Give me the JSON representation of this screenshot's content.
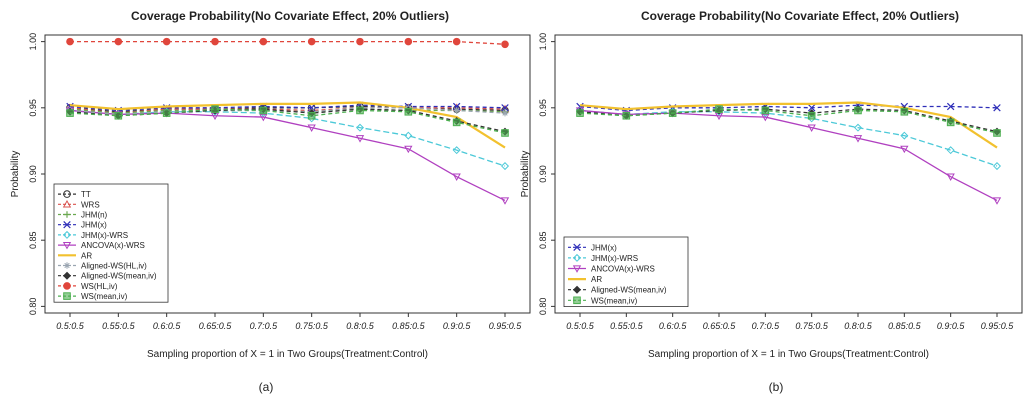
{
  "series_styles": {
    "TT": {
      "color": "#333333",
      "marker": "circle",
      "dash": "4,3"
    },
    "WRS": {
      "color": "#d9534f",
      "marker": "triangle-up",
      "dash": "4,3"
    },
    "JHM(n)": {
      "color": "#6aa84f",
      "marker": "plus",
      "dash": "4,3"
    },
    "JHM(x)": {
      "color": "#2d2db8",
      "marker": "x",
      "dash": "4,3"
    },
    "JHM(x)-WRS": {
      "color": "#4cc9d8",
      "marker": "diamond",
      "dash": "6,3"
    },
    "ANCOVA(x)-WRS": {
      "color": "#b040c0",
      "marker": "triangle-down",
      "dash": "0"
    },
    "AR": {
      "color": "#f2c12e",
      "marker": "none",
      "dash": "0"
    },
    "Aligned-WS(HL,iv)": {
      "color": "#9aa5b1",
      "marker": "star",
      "dash": "4,3"
    },
    "Aligned-WS(mean,iv)": {
      "color": "#333333",
      "marker": "diamond-filled",
      "dash": "4,3"
    },
    "WS(HL,iv)": {
      "color": "#e0463c",
      "marker": "circle-filled",
      "dash": "4,3"
    },
    "WS(mean,iv)": {
      "color": "#4caf50",
      "marker": "square",
      "dash": "4,3"
    }
  },
  "captions": [
    "(a)",
    "(b)"
  ],
  "chart_data": [
    {
      "type": "line",
      "title": "Coverage Probability(No Covariate Effect, 20% Outliers)",
      "xlabel": "Sampling proportion of X = 1 in Two Groups(Treatment:Control)",
      "ylabel": "Probability",
      "categories": [
        "0.5:0.5",
        "0.55:0.5",
        "0.6:0.5",
        "0.65:0.5",
        "0.7:0.5",
        "0.75:0.5",
        "0.8:0.5",
        "0.85:0.5",
        "0.9:0.5",
        "0.95:0.5"
      ],
      "ylim": [
        0.795,
        1.005
      ],
      "yticks": [
        "0.80",
        "0.85",
        "0.90",
        "0.95",
        "1.00"
      ],
      "legend_position": "bottom-left",
      "series": [
        {
          "name": "TT",
          "values": [
            0.95,
            0.947,
            0.949,
            0.949,
            0.95,
            0.95,
            0.951,
            0.95,
            0.949,
            0.948
          ]
        },
        {
          "name": "WRS",
          "values": [
            0.95,
            0.946,
            0.949,
            0.949,
            0.949,
            0.948,
            0.95,
            0.95,
            0.95,
            0.949
          ]
        },
        {
          "name": "JHM(n)",
          "values": [
            0.949,
            0.946,
            0.948,
            0.948,
            0.948,
            0.947,
            0.949,
            0.948,
            0.948,
            0.947
          ]
        },
        {
          "name": "JHM(x)",
          "values": [
            0.951,
            0.948,
            0.95,
            0.95,
            0.951,
            0.95,
            0.952,
            0.951,
            0.951,
            0.95
          ]
        },
        {
          "name": "JHM(x)-WRS",
          "values": [
            0.948,
            0.945,
            0.947,
            0.947,
            0.946,
            0.942,
            0.935,
            0.929,
            0.918,
            0.906
          ]
        },
        {
          "name": "ANCOVA(x)-WRS",
          "values": [
            0.948,
            0.945,
            0.946,
            0.944,
            0.943,
            0.935,
            0.927,
            0.919,
            0.898,
            0.88
          ]
        },
        {
          "name": "AR",
          "values": [
            0.952,
            0.949,
            0.951,
            0.952,
            0.953,
            0.953,
            0.954,
            0.95,
            0.943,
            0.92
          ]
        },
        {
          "name": "Aligned-WS(HL,iv)",
          "values": [
            0.948,
            0.945,
            0.947,
            0.948,
            0.948,
            0.947,
            0.95,
            0.95,
            0.948,
            0.946
          ]
        },
        {
          "name": "Aligned-WS(mean,iv)",
          "values": [
            0.947,
            0.944,
            0.946,
            0.948,
            0.949,
            0.946,
            0.949,
            0.948,
            0.94,
            0.932
          ]
        },
        {
          "name": "WS(HL,iv)",
          "values": [
            1.0,
            1.0,
            1.0,
            1.0,
            1.0,
            1.0,
            1.0,
            1.0,
            1.0,
            0.998
          ]
        },
        {
          "name": "WS(mean,iv)",
          "values": [
            0.946,
            0.944,
            0.946,
            0.949,
            0.948,
            0.944,
            0.948,
            0.947,
            0.939,
            0.931
          ]
        }
      ]
    },
    {
      "type": "line",
      "title": "Coverage Probability(No Covariate Effect, 20% Outliers)",
      "xlabel": "Sampling proportion of X = 1 in Two Groups(Treatment:Control)",
      "ylabel": "Probability",
      "categories": [
        "0.5:0.5",
        "0.55:0.5",
        "0.6:0.5",
        "0.65:0.5",
        "0.7:0.5",
        "0.75:0.5",
        "0.8:0.5",
        "0.85:0.5",
        "0.9:0.5",
        "0.95:0.5"
      ],
      "ylim": [
        0.795,
        1.005
      ],
      "yticks": [
        "0.80",
        "0.85",
        "0.90",
        "0.95",
        "1.00"
      ],
      "legend_position": "bottom-left",
      "series": [
        {
          "name": "JHM(x)",
          "values": [
            0.951,
            0.948,
            0.95,
            0.95,
            0.951,
            0.95,
            0.952,
            0.951,
            0.951,
            0.95
          ]
        },
        {
          "name": "JHM(x)-WRS",
          "values": [
            0.948,
            0.945,
            0.947,
            0.947,
            0.946,
            0.942,
            0.935,
            0.929,
            0.918,
            0.906
          ]
        },
        {
          "name": "ANCOVA(x)-WRS",
          "values": [
            0.948,
            0.945,
            0.946,
            0.944,
            0.943,
            0.935,
            0.927,
            0.919,
            0.898,
            0.88
          ]
        },
        {
          "name": "AR",
          "values": [
            0.952,
            0.949,
            0.951,
            0.952,
            0.953,
            0.953,
            0.954,
            0.95,
            0.943,
            0.92
          ]
        },
        {
          "name": "Aligned-WS(mean,iv)",
          "values": [
            0.947,
            0.944,
            0.946,
            0.948,
            0.949,
            0.946,
            0.949,
            0.948,
            0.94,
            0.932
          ]
        },
        {
          "name": "WS(mean,iv)",
          "values": [
            0.946,
            0.944,
            0.946,
            0.949,
            0.948,
            0.944,
            0.948,
            0.947,
            0.939,
            0.931
          ]
        }
      ]
    }
  ]
}
